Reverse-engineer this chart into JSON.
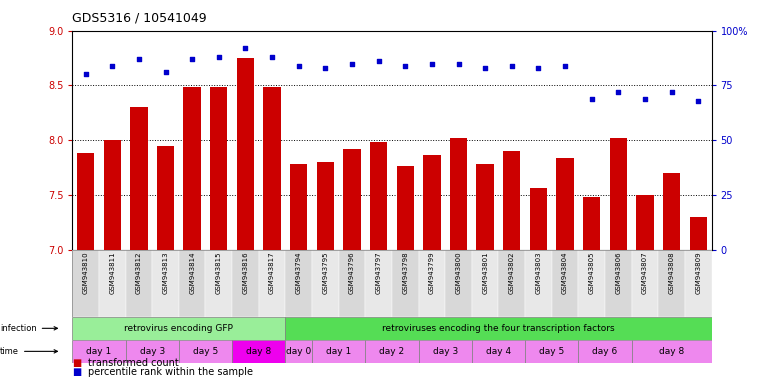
{
  "title": "GDS5316 / 10541049",
  "samples": [
    "GSM943810",
    "GSM943811",
    "GSM943812",
    "GSM943813",
    "GSM943814",
    "GSM943815",
    "GSM943816",
    "GSM943817",
    "GSM943794",
    "GSM943795",
    "GSM943796",
    "GSM943797",
    "GSM943798",
    "GSM943799",
    "GSM943800",
    "GSM943801",
    "GSM943802",
    "GSM943803",
    "GSM943804",
    "GSM943805",
    "GSM943806",
    "GSM943807",
    "GSM943808",
    "GSM943809"
  ],
  "transformed_count": [
    7.88,
    8.0,
    8.3,
    7.95,
    8.49,
    8.49,
    8.75,
    8.49,
    7.78,
    7.8,
    7.92,
    7.98,
    7.76,
    7.86,
    8.02,
    7.78,
    7.9,
    7.56,
    7.84,
    7.48,
    8.02,
    7.5,
    7.7,
    7.3
  ],
  "percentile_rank": [
    80,
    84,
    87,
    81,
    87,
    88,
    92,
    88,
    84,
    83,
    85,
    86,
    84,
    85,
    85,
    83,
    84,
    83,
    84,
    69,
    72,
    69,
    72,
    68
  ],
  "ylim_left": [
    7.0,
    9.0
  ],
  "ylim_right": [
    0,
    100
  ],
  "yticks_left": [
    7.0,
    7.5,
    8.0,
    8.5,
    9.0
  ],
  "yticks_right": [
    0,
    25,
    50,
    75,
    100
  ],
  "bar_color": "#CC0000",
  "dot_color": "#0000CC",
  "infection_groups": [
    {
      "label": "retrovirus encoding GFP",
      "start": 0,
      "end": 8,
      "color": "#99EE99"
    },
    {
      "label": "retroviruses encoding the four transcription factors",
      "start": 8,
      "end": 24,
      "color": "#55DD55"
    }
  ],
  "time_groups": [
    {
      "label": "day 1",
      "start": 0,
      "end": 2,
      "color": "#EE88EE"
    },
    {
      "label": "day 3",
      "start": 2,
      "end": 4,
      "color": "#EE88EE"
    },
    {
      "label": "day 5",
      "start": 4,
      "end": 6,
      "color": "#EE88EE"
    },
    {
      "label": "day 8",
      "start": 6,
      "end": 8,
      "color": "#EE00EE"
    },
    {
      "label": "day 0",
      "start": 8,
      "end": 9,
      "color": "#EE88EE"
    },
    {
      "label": "day 1",
      "start": 9,
      "end": 11,
      "color": "#EE88EE"
    },
    {
      "label": "day 2",
      "start": 11,
      "end": 13,
      "color": "#EE88EE"
    },
    {
      "label": "day 3",
      "start": 13,
      "end": 15,
      "color": "#EE88EE"
    },
    {
      "label": "day 4",
      "start": 15,
      "end": 17,
      "color": "#EE88EE"
    },
    {
      "label": "day 5",
      "start": 17,
      "end": 19,
      "color": "#EE88EE"
    },
    {
      "label": "day 6",
      "start": 19,
      "end": 21,
      "color": "#EE88EE"
    },
    {
      "label": "day 8",
      "start": 21,
      "end": 24,
      "color": "#EE88EE"
    }
  ],
  "legend_items": [
    {
      "label": "transformed count",
      "color": "#CC0000"
    },
    {
      "label": "percentile rank within the sample",
      "color": "#0000CC"
    }
  ]
}
